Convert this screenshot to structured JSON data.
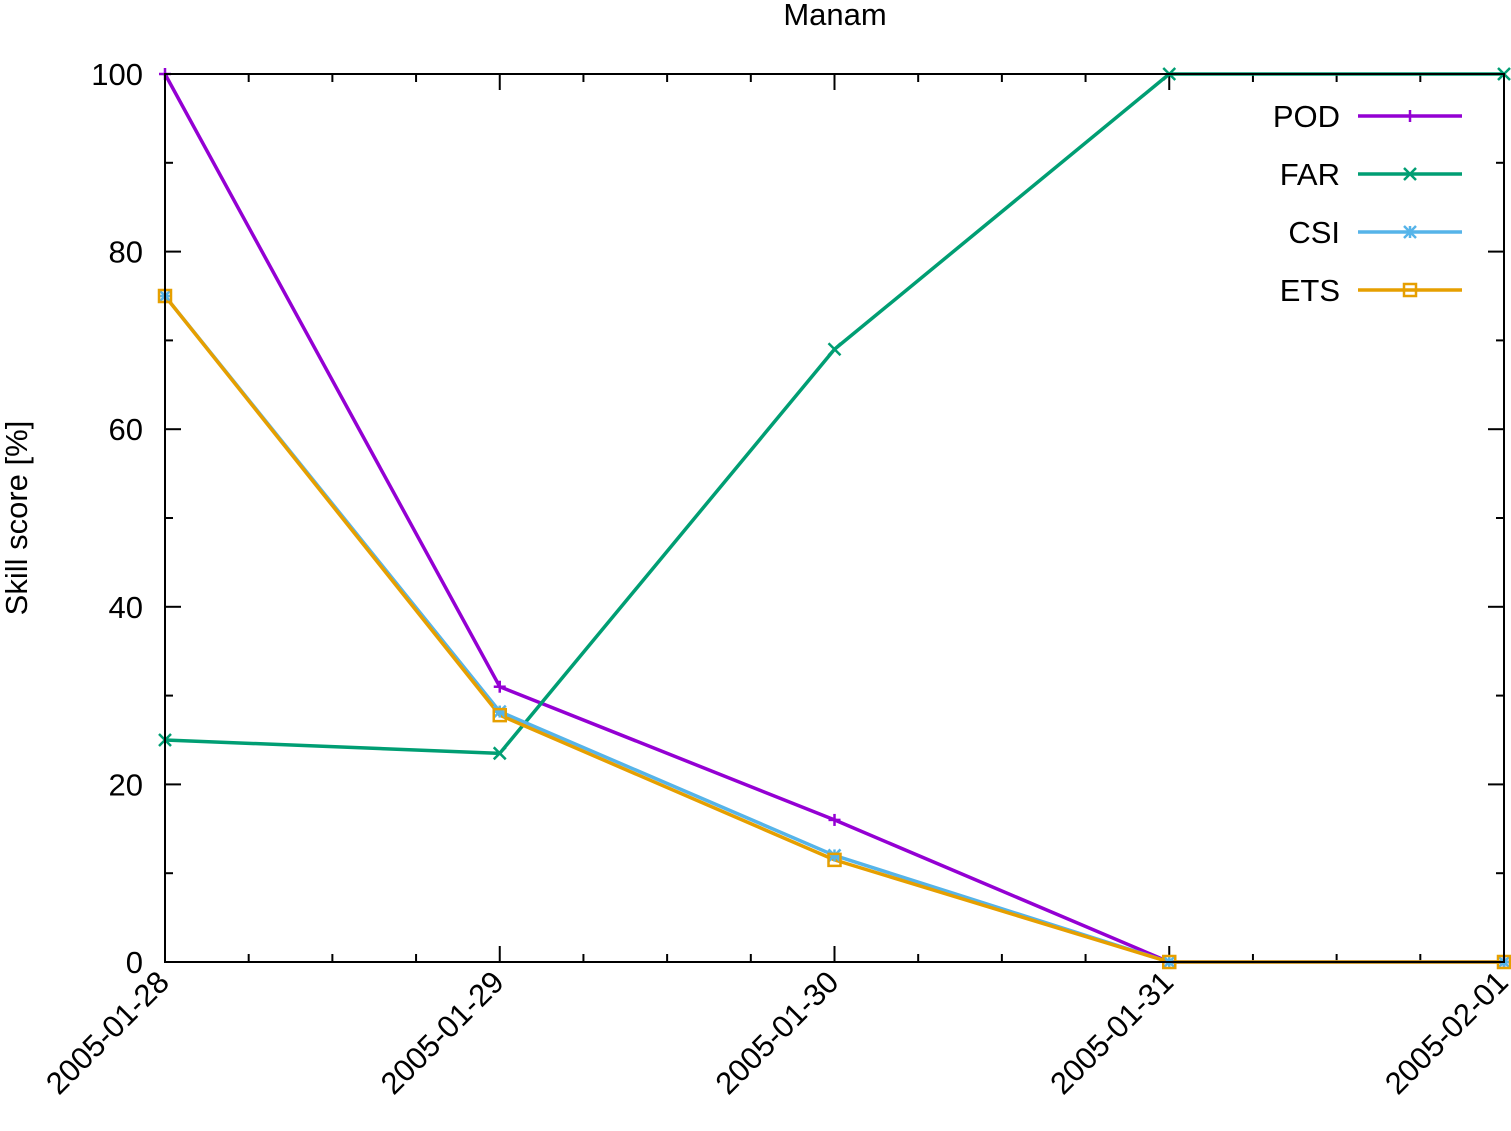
{
  "chart_data": {
    "type": "line",
    "title": "Manam",
    "xlabel": "",
    "ylabel": "Skill score [%]",
    "x": [
      "2005-01-28",
      "2005-01-29",
      "2005-01-30",
      "2005-01-31",
      "2005-02-01"
    ],
    "xlim": [
      "2005-01-28",
      "2005-02-01"
    ],
    "ylim": [
      0,
      100
    ],
    "yticks": [
      0,
      20,
      40,
      60,
      80,
      100
    ],
    "grid": false,
    "legend_position": "top-right",
    "series": [
      {
        "name": "POD",
        "color": "#9400d3",
        "marker": "plus",
        "values": [
          100,
          31,
          16,
          0,
          0
        ]
      },
      {
        "name": "FAR",
        "color": "#009e73",
        "marker": "cross",
        "values": [
          25,
          23.5,
          69,
          100,
          100
        ]
      },
      {
        "name": "CSI",
        "color": "#56b4e9",
        "marker": "star",
        "values": [
          75,
          28.2,
          12,
          0,
          0
        ]
      },
      {
        "name": "ETS",
        "color": "#e69f00",
        "marker": "box",
        "values": [
          75,
          27.8,
          11.5,
          0,
          0
        ]
      }
    ]
  }
}
